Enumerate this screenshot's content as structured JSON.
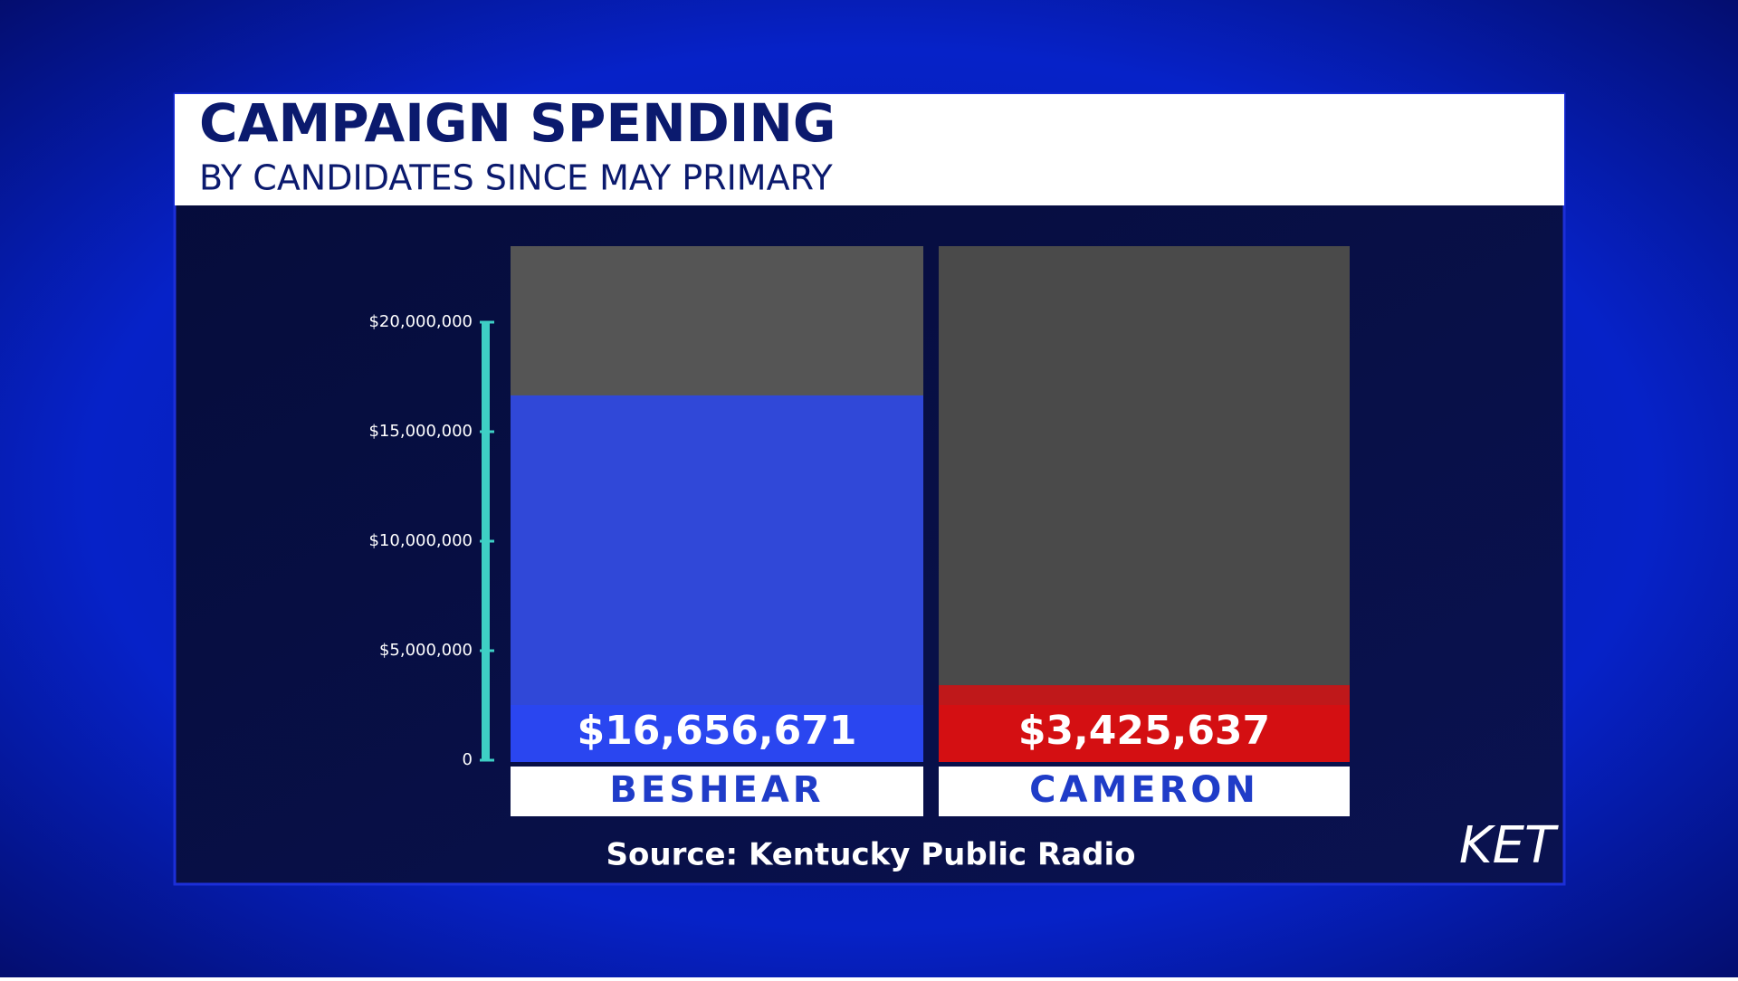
{
  "chart_data": {
    "type": "bar",
    "title": "CAMPAIGN SPENDING",
    "subtitle": "BY CANDIDATES SINCE MAY PRIMARY",
    "categories": [
      "BESHEAR",
      "CAMERON"
    ],
    "values": [
      16656671,
      3425637
    ],
    "value_labels": [
      "$16,656,671",
      "$3,425,637"
    ],
    "colors": [
      "#2a46f0",
      "#d40f12"
    ],
    "ylim": [
      0,
      20000000
    ],
    "yticks": [
      0,
      {
        "value": 5000000,
        "label": "$5,000,000"
      },
      {
        "value": 10000000,
        "label": "$10,000,000"
      },
      {
        "value": 15000000,
        "label": "$15,000,000"
      },
      {
        "value": 20000000,
        "label": "$20,000,000"
      }
    ],
    "source": "Source: Kentucky Public Radio",
    "logo": "KET"
  }
}
